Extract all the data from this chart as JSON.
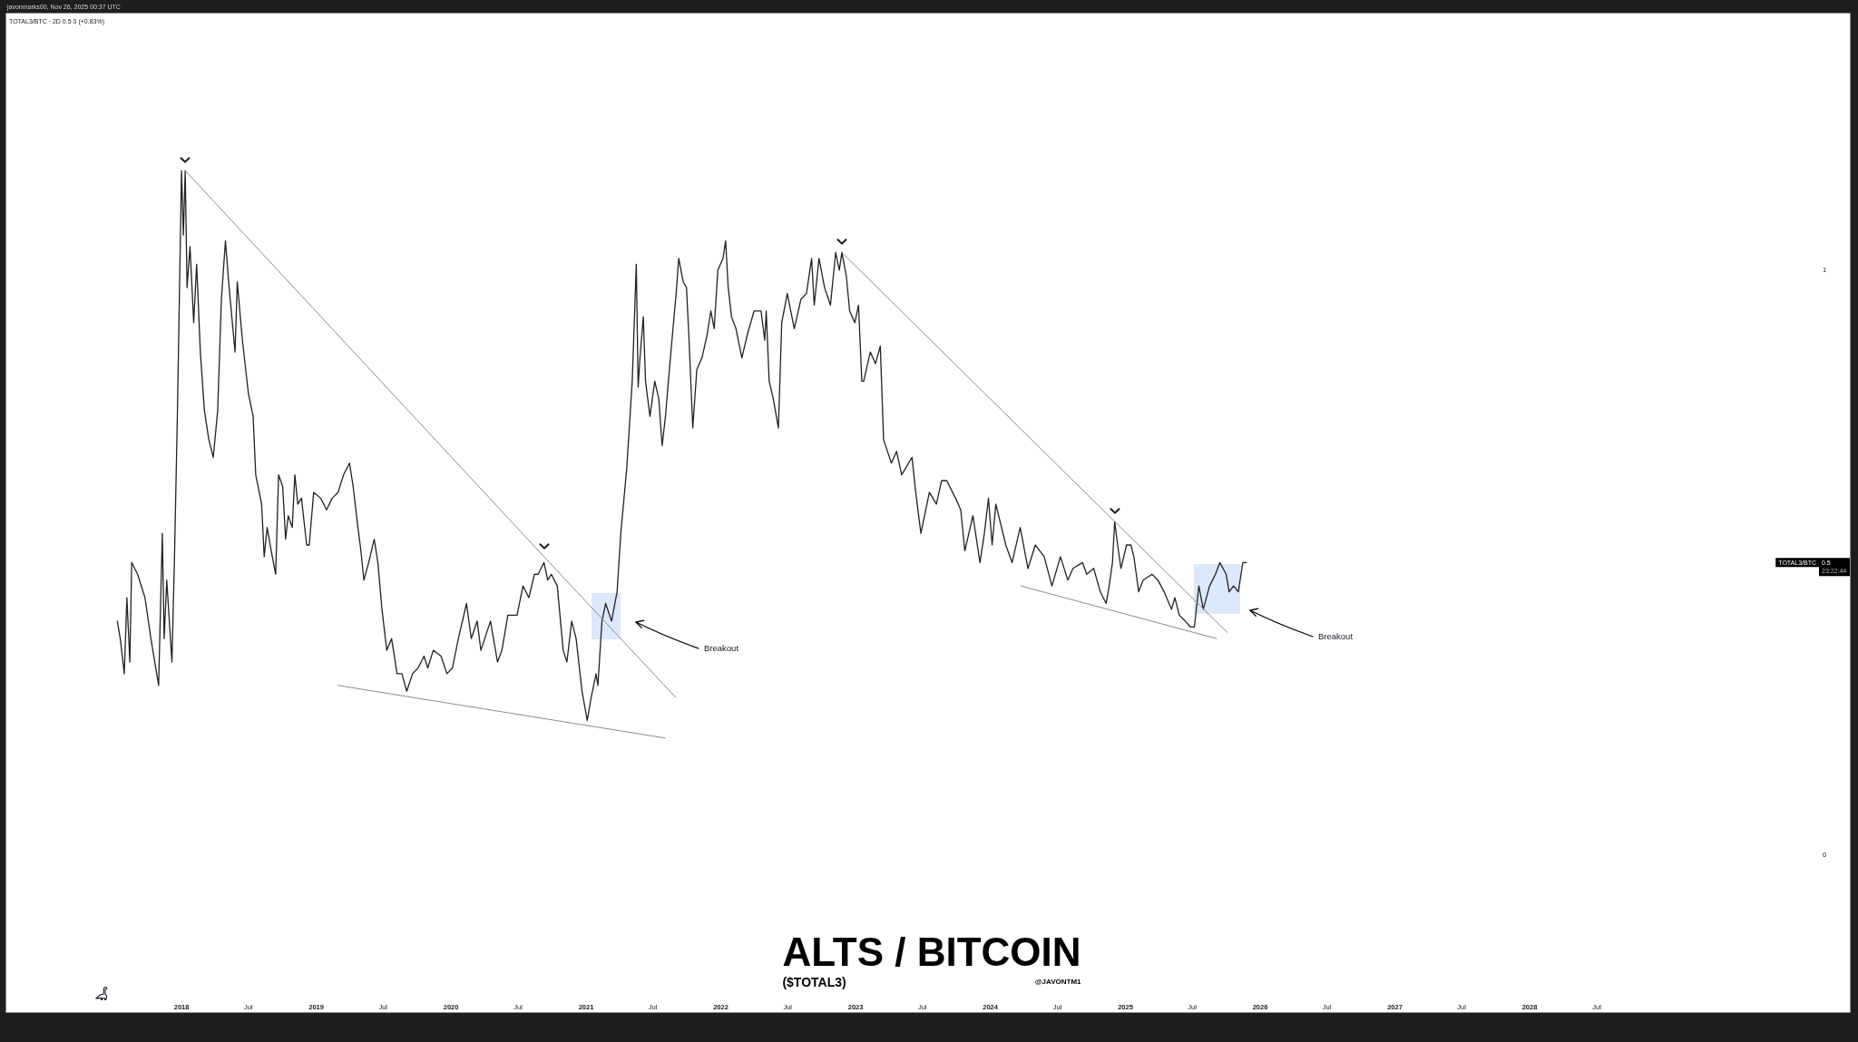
{
  "chart_data": {
    "type": "line",
    "title": "ALTS / BITCOIN",
    "subtitle": "($TOTAL3)",
    "x": [
      "2017-07-11",
      "2017-07-19",
      "2017-07-30",
      "2017-08-06",
      "2017-08-14",
      "2017-08-19",
      "2017-09-04",
      "2017-09-24",
      "2017-10-10",
      "2017-10-31",
      "2017-11-10",
      "2017-11-15",
      "2017-11-22",
      "2017-12-06",
      "2017-12-13",
      "2017-12-21",
      "2018-01-01",
      "2018-01-06",
      "2018-01-11",
      "2018-01-16",
      "2018-01-24",
      "2018-02-03",
      "2018-02-11",
      "2018-02-21",
      "2018-03-04",
      "2018-03-16",
      "2018-03-28",
      "2018-04-09",
      "2018-04-19",
      "2018-04-30",
      "2018-05-10",
      "2018-05-26",
      "2018-06-01",
      "2018-06-15",
      "2018-07-01",
      "2018-07-14",
      "2018-07-21",
      "2018-08-06",
      "2018-08-13",
      "2018-08-21",
      "2018-09-01",
      "2018-09-13",
      "2018-09-21",
      "2018-10-02",
      "2018-10-10",
      "2018-10-17",
      "2018-10-28",
      "2018-11-04",
      "2018-11-12",
      "2018-11-22",
      "2018-12-06",
      "2018-12-13",
      "2018-12-25",
      "2019-01-13",
      "2019-01-29",
      "2019-02-13",
      "2019-03-01",
      "2019-03-16",
      "2019-04-01",
      "2019-04-11",
      "2019-04-22",
      "2019-05-02",
      "2019-05-10",
      "2019-05-23",
      "2019-06-07",
      "2019-06-17",
      "2019-06-28",
      "2019-07-11",
      "2019-07-24",
      "2019-08-08",
      "2019-08-21",
      "2019-09-03",
      "2019-09-19",
      "2019-10-04",
      "2019-10-20",
      "2019-10-30",
      "2019-11-14",
      "2019-12-05",
      "2019-12-21",
      "2020-01-05",
      "2020-01-21",
      "2020-02-12",
      "2020-02-25",
      "2020-03-12",
      "2020-03-22",
      "2020-04-17",
      "2020-05-06",
      "2020-05-18",
      "2020-06-03",
      "2020-06-28",
      "2020-07-14",
      "2020-07-30",
      "2020-08-14",
      "2020-08-24",
      "2020-09-09",
      "2020-09-19",
      "2020-09-29",
      "2020-10-15",
      "2020-10-31",
      "2020-11-10",
      "2020-11-23",
      "2020-12-05",
      "2020-12-21",
      "2021-01-04",
      "2021-01-15",
      "2021-01-28",
      "2021-02-02",
      "2021-02-13",
      "2021-02-23",
      "2021-03-11",
      "2021-03-26",
      "2021-04-05",
      "2021-04-21",
      "2021-05-06",
      "2021-05-17",
      "2021-05-22",
      "2021-05-27",
      "2021-06-05",
      "2021-06-11",
      "2021-06-23",
      "2021-07-06",
      "2021-07-17",
      "2021-07-26",
      "2021-08-04",
      "2021-08-12",
      "2021-08-23",
      "2021-09-02",
      "2021-09-09",
      "2021-09-21",
      "2021-09-30",
      "2021-10-07",
      "2021-10-17",
      "2021-10-28",
      "2021-11-11",
      "2021-11-25",
      "2021-12-05",
      "2021-12-14",
      "2021-12-24",
      "2022-01-07",
      "2022-01-14",
      "2022-01-21",
      "2022-01-30",
      "2022-02-11",
      "2022-02-27",
      "2022-03-14",
      "2022-04-01",
      "2022-04-20",
      "2022-04-30",
      "2022-05-04",
      "2022-05-12",
      "2022-05-23",
      "2022-06-06",
      "2022-06-15",
      "2022-06-30",
      "2022-07-19",
      "2022-08-06",
      "2022-08-21",
      "2022-09-04",
      "2022-09-11",
      "2022-09-24",
      "2022-10-09",
      "2022-10-25",
      "2022-11-08",
      "2022-11-18",
      "2022-11-25",
      "2022-12-07",
      "2022-12-16",
      "2022-12-30",
      "2023-01-09",
      "2023-01-18",
      "2023-01-23",
      "2023-02-10",
      "2023-02-24",
      "2023-03-09",
      "2023-03-18",
      "2023-04-08",
      "2023-04-22",
      "2023-05-06",
      "2023-06-03",
      "2023-06-13",
      "2023-06-27",
      "2023-07-20",
      "2023-08-08",
      "2023-08-22",
      "2023-09-05",
      "2023-09-29",
      "2023-10-13",
      "2023-10-24",
      "2023-11-15",
      "2023-12-04",
      "2023-12-16",
      "2023-12-27",
      "2024-01-06",
      "2024-01-16",
      "2024-02-12",
      "2024-02-29",
      "2024-03-22",
      "2024-04-12",
      "2024-05-02",
      "2024-05-26",
      "2024-06-16",
      "2024-07-09",
      "2024-07-29",
      "2024-08-12",
      "2024-09-07",
      "2024-09-18",
      "2024-10-07",
      "2024-10-25",
      "2024-11-10",
      "2024-11-18",
      "2024-11-27",
      "2024-12-03",
      "2024-12-11",
      "2024-12-20",
      "2025-01-04",
      "2025-01-16",
      "2025-01-24",
      "2025-02-06",
      "2025-02-18",
      "2025-03-14",
      "2025-03-30",
      "2025-04-16",
      "2025-05-06",
      "2025-05-15",
      "2025-05-27",
      "2025-06-12",
      "2025-06-26",
      "2025-07-07",
      "2025-07-19",
      "2025-07-31",
      "2025-08-17",
      "2025-09-02",
      "2025-09-14",
      "2025-10-01",
      "2025-10-09",
      "2025-10-21",
      "2025-11-03",
      "2025-11-15",
      "2025-11-25"
    ],
    "series": [
      {
        "color": "#222222",
        "values": [
          0.4,
          0.37,
          0.31,
          0.44,
          0.33,
          0.5,
          0.48,
          0.44,
          0.37,
          0.29,
          0.55,
          0.37,
          0.47,
          0.33,
          0.51,
          0.76,
          1.17,
          1.06,
          1.17,
          0.97,
          1.04,
          0.91,
          1.01,
          0.86,
          0.76,
          0.71,
          0.68,
          0.76,
          0.95,
          1.05,
          0.97,
          0.86,
          0.98,
          0.88,
          0.79,
          0.75,
          0.65,
          0.6,
          0.51,
          0.56,
          0.52,
          0.48,
          0.65,
          0.63,
          0.54,
          0.58,
          0.56,
          0.65,
          0.6,
          0.61,
          0.53,
          0.53,
          0.62,
          0.61,
          0.59,
          0.61,
          0.62,
          0.65,
          0.67,
          0.63,
          0.57,
          0.52,
          0.47,
          0.5,
          0.54,
          0.5,
          0.42,
          0.35,
          0.37,
          0.31,
          0.31,
          0.28,
          0.31,
          0.32,
          0.34,
          0.32,
          0.35,
          0.34,
          0.31,
          0.32,
          0.37,
          0.43,
          0.37,
          0.4,
          0.35,
          0.4,
          0.33,
          0.35,
          0.41,
          0.41,
          0.46,
          0.44,
          0.48,
          0.48,
          0.5,
          0.47,
          0.48,
          0.46,
          0.35,
          0.33,
          0.4,
          0.37,
          0.28,
          0.23,
          0.27,
          0.31,
          0.29,
          0.4,
          0.43,
          0.4,
          0.45,
          0.55,
          0.66,
          0.81,
          1.01,
          0.8,
          0.85,
          0.92,
          0.81,
          0.75,
          0.81,
          0.78,
          0.7,
          0.75,
          0.81,
          0.89,
          0.96,
          1.02,
          0.98,
          0.97,
          0.88,
          0.73,
          0.83,
          0.85,
          0.89,
          0.93,
          0.9,
          1.0,
          1.02,
          1.05,
          0.97,
          0.92,
          0.9,
          0.85,
          0.89,
          0.93,
          0.93,
          0.88,
          0.93,
          0.81,
          0.78,
          0.73,
          0.91,
          0.96,
          0.9,
          0.95,
          0.96,
          1.02,
          0.94,
          1.02,
          0.97,
          0.94,
          1.03,
          1.0,
          1.03,
          0.99,
          0.93,
          0.91,
          0.94,
          0.81,
          0.81,
          0.86,
          0.84,
          0.87,
          0.71,
          0.67,
          0.69,
          0.65,
          0.68,
          0.62,
          0.55,
          0.62,
          0.6,
          0.64,
          0.64,
          0.61,
          0.59,
          0.52,
          0.58,
          0.5,
          0.55,
          0.61,
          0.53,
          0.6,
          0.53,
          0.5,
          0.56,
          0.49,
          0.53,
          0.51,
          0.46,
          0.51,
          0.47,
          0.49,
          0.5,
          0.48,
          0.49,
          0.45,
          0.43,
          0.46,
          0.5,
          0.57,
          0.53,
          0.49,
          0.53,
          0.53,
          0.51,
          0.45,
          0.47,
          0.48,
          0.47,
          0.45,
          0.42,
          0.44,
          0.41,
          0.4,
          0.39,
          0.39,
          0.46,
          0.42,
          0.46,
          0.48,
          0.5,
          0.48,
          0.45,
          0.46,
          0.45,
          0.5,
          0.5
        ]
      },
      {
        "type": "line",
        "color": "#8c8c8c",
        "x": [
          "2018-01-11",
          "2020-09-09",
          "2021-08-31"
        ],
        "values": [
          1.17,
          0.51,
          0.27
        ]
      },
      {
        "type": "line",
        "color": "#8c8c8c",
        "x": [
          "2019-03-01",
          "2021-08-03"
        ],
        "values": [
          0.29,
          0.2
        ]
      },
      {
        "type": "line",
        "color": "#8c8c8c",
        "x": [
          "2022-11-25",
          "2024-12-03",
          "2025-10-05"
        ],
        "values": [
          1.03,
          0.57,
          0.38
        ]
      },
      {
        "type": "line",
        "color": "#8c8c8c",
        "x": [
          "2024-03-24",
          "2025-09-05"
        ],
        "values": [
          0.46,
          0.37
        ]
      }
    ],
    "xlim": [
      "2016-09-11",
      "2030-05-20"
    ],
    "xticks": [
      {
        "value": "2018-01-01",
        "label": "2018"
      },
      {
        "value": "2018-07-01",
        "label": "Jul"
      },
      {
        "value": "2019-01-01",
        "label": "2019"
      },
      {
        "value": "2019-07-01",
        "label": "Jul"
      },
      {
        "value": "2020-01-01",
        "label": "2020"
      },
      {
        "value": "2020-07-01",
        "label": "Jul"
      },
      {
        "value": "2021-01-01",
        "label": "2021"
      },
      {
        "value": "2021-07-01",
        "label": "Jul"
      },
      {
        "value": "2022-01-01",
        "label": "2022"
      },
      {
        "value": "2022-07-01",
        "label": "Jul"
      },
      {
        "value": "2023-01-01",
        "label": "2023"
      },
      {
        "value": "2023-07-01",
        "label": "Jul"
      },
      {
        "value": "2024-01-01",
        "label": "2024"
      },
      {
        "value": "2024-07-01",
        "label": "Jul"
      },
      {
        "value": "2025-01-01",
        "label": "2025"
      },
      {
        "value": "2025-07-01",
        "label": "Jul"
      },
      {
        "value": "2026-01-01",
        "label": "2026"
      },
      {
        "value": "2026-07-01",
        "label": "Jul"
      },
      {
        "value": "2027-01-01",
        "label": "2027"
      },
      {
        "value": "2027-07-01",
        "label": "Jul"
      },
      {
        "value": "2028-01-01",
        "label": "2028"
      },
      {
        "value": "2028-07-01",
        "label": "Jul"
      }
    ],
    "ylim": [
      -0.27,
      1.44
    ],
    "yticks": [
      0,
      1
    ],
    "annotations": [
      "javonmarks00, Nov 26, 2025 00:37 UTC",
      "TOTAL3/BTC · 2D 0.5 0 (+0.83%)",
      "@JAVONTM1",
      "Breakout",
      "Breakout",
      "TOTAL3/BTC",
      "0.5",
      "23:22:44"
    ]
  }
}
